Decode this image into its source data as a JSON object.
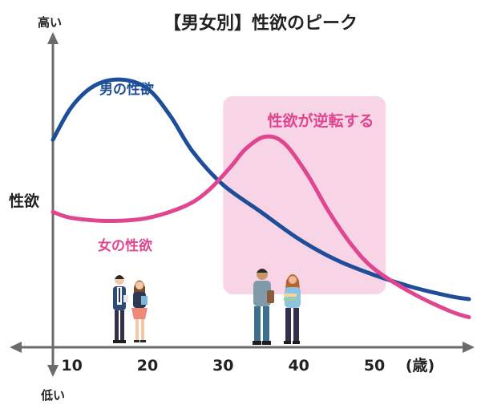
{
  "chart_data": {
    "type": "line",
    "title": "【男女別】性欲のピーク",
    "ylabel": "性欲",
    "y_high_label": "高い",
    "y_low_label": "低い",
    "x_unit_label": "(歳)",
    "x_ticks": [
      10,
      20,
      30,
      40,
      50
    ],
    "xlim": [
      7.5,
      62.5
    ],
    "ylim": [
      0,
      100
    ],
    "grid": false,
    "series": [
      {
        "name": "男の性欲",
        "color": "#1f4e99",
        "points": [
          [
            7.5,
            69
          ],
          [
            10,
            80
          ],
          [
            13,
            87
          ],
          [
            16.5,
            89
          ],
          [
            20,
            86
          ],
          [
            23,
            77
          ],
          [
            26,
            65
          ],
          [
            30,
            54
          ],
          [
            35,
            45
          ],
          [
            40,
            36
          ],
          [
            45,
            29
          ],
          [
            50,
            24
          ],
          [
            55,
            20
          ],
          [
            60,
            17
          ],
          [
            62.5,
            16
          ]
        ]
      },
      {
        "name": "女の性欲",
        "color": "#e0458f",
        "points": [
          [
            7.5,
            45
          ],
          [
            10,
            43
          ],
          [
            15,
            42
          ],
          [
            20,
            43
          ],
          [
            25,
            47
          ],
          [
            28,
            52
          ],
          [
            31,
            60
          ],
          [
            33,
            66
          ],
          [
            35.5,
            70
          ],
          [
            38,
            68
          ],
          [
            41,
            58
          ],
          [
            44,
            45
          ],
          [
            47,
            34
          ],
          [
            50,
            26
          ],
          [
            55,
            18
          ],
          [
            60,
            12
          ],
          [
            62.5,
            10
          ]
        ]
      }
    ],
    "highlight": {
      "label": "性欲が逆転する",
      "x_range": [
        30,
        51.5
      ],
      "color": "#f7d4e6",
      "text_color": "#e0458f"
    },
    "axis_color": "#6b6b6b"
  }
}
